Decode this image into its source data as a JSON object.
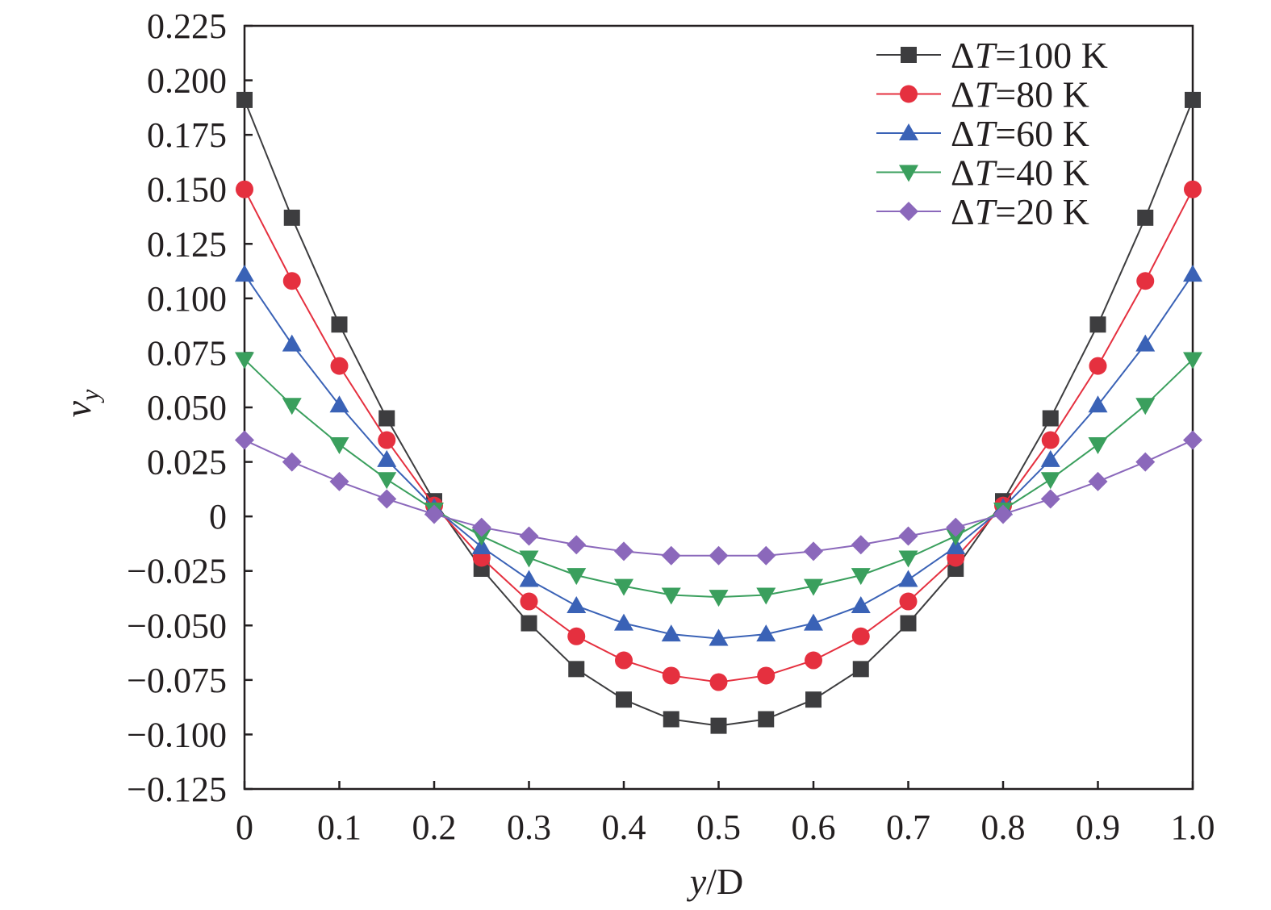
{
  "chart_data": {
    "type": "line",
    "xlabel_parts": [
      "y",
      "/D"
    ],
    "ylabel_parts": [
      "v",
      "y"
    ],
    "xlim": [
      0,
      1.0
    ],
    "ylim": [
      -0.125,
      0.225
    ],
    "x_ticks": [
      0,
      0.1,
      0.2,
      0.3,
      0.4,
      0.5,
      0.6,
      0.7,
      0.8,
      0.9,
      1.0
    ],
    "x_tick_labels": [
      "0",
      "0.1",
      "0.2",
      "0.3",
      "0.4",
      "0.5",
      "0.6",
      "0.7",
      "0.8",
      "0.9",
      "1.0"
    ],
    "y_ticks": [
      -0.125,
      -0.1,
      -0.075,
      -0.05,
      -0.025,
      0,
      0.025,
      0.05,
      0.075,
      0.1,
      0.125,
      0.15,
      0.175,
      0.2,
      0.225
    ],
    "y_tick_labels": [
      "−0.125",
      "−0.100",
      "−0.075",
      "−0.050",
      "−0.025",
      "0",
      "0.025",
      "0.050",
      "0.075",
      "0.100",
      "0.125",
      "0.150",
      "0.175",
      "0.200",
      "0.225"
    ],
    "grid": false,
    "legend_position": "top-right",
    "x": [
      0,
      0.05,
      0.1,
      0.15,
      0.2,
      0.25,
      0.3,
      0.35,
      0.4,
      0.45,
      0.5,
      0.55,
      0.6,
      0.65,
      0.7,
      0.75,
      0.8,
      0.85,
      0.9,
      0.95,
      1.0
    ],
    "series": [
      {
        "name_prefix": "Δ",
        "name_italic": "T",
        "name_suffix": "=100 K",
        "color": "#3d3d3f",
        "marker": "square",
        "values": [
          0.191,
          0.137,
          0.088,
          0.045,
          0.007,
          -0.024,
          -0.049,
          -0.07,
          -0.084,
          -0.093,
          -0.096,
          -0.093,
          -0.084,
          -0.07,
          -0.049,
          -0.024,
          0.007,
          0.045,
          0.088,
          0.137,
          0.191
        ]
      },
      {
        "name_prefix": "Δ",
        "name_italic": "T",
        "name_suffix": "=80 K",
        "color": "#e5303f",
        "marker": "circle",
        "values": [
          0.15,
          0.108,
          0.069,
          0.035,
          0.005,
          -0.019,
          -0.039,
          -0.055,
          -0.066,
          -0.073,
          -0.076,
          -0.073,
          -0.066,
          -0.055,
          -0.039,
          -0.019,
          0.005,
          0.035,
          0.069,
          0.108,
          0.15
        ]
      },
      {
        "name_prefix": "Δ",
        "name_italic": "T",
        "name_suffix": "=60 K",
        "color": "#3a62b6",
        "marker": "triangle-up",
        "values": [
          0.111,
          0.079,
          0.051,
          0.026,
          0.004,
          -0.014,
          -0.029,
          -0.041,
          -0.049,
          -0.054,
          -0.056,
          -0.054,
          -0.049,
          -0.041,
          -0.029,
          -0.014,
          0.004,
          0.026,
          0.051,
          0.079,
          0.111
        ]
      },
      {
        "name_prefix": "Δ",
        "name_italic": "T",
        "name_suffix": "=40 K",
        "color": "#3a9f5d",
        "marker": "triangle-down",
        "values": [
          0.072,
          0.051,
          0.033,
          0.017,
          0.003,
          -0.009,
          -0.019,
          -0.027,
          -0.032,
          -0.036,
          -0.037,
          -0.036,
          -0.032,
          -0.027,
          -0.019,
          -0.009,
          0.003,
          0.017,
          0.033,
          0.051,
          0.072
        ]
      },
      {
        "name_prefix": "Δ",
        "name_italic": "T",
        "name_suffix": "=20 K",
        "color": "#8b68bb",
        "marker": "diamond",
        "values": [
          0.035,
          0.025,
          0.016,
          0.008,
          0.001,
          -0.005,
          -0.009,
          -0.013,
          -0.016,
          -0.018,
          -0.018,
          -0.018,
          -0.016,
          -0.013,
          -0.009,
          -0.005,
          0.001,
          0.008,
          0.016,
          0.025,
          0.035
        ]
      }
    ]
  }
}
